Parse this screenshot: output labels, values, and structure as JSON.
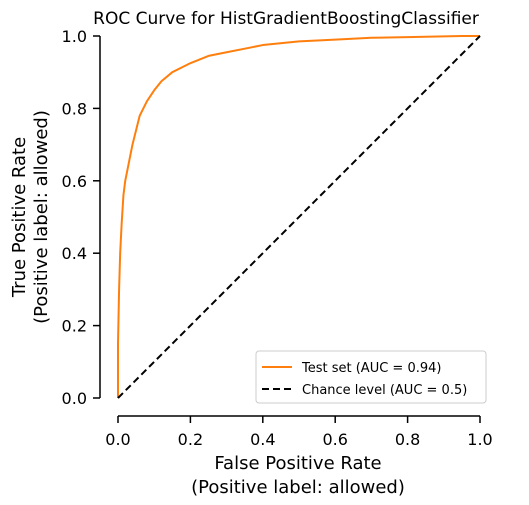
{
  "chart_data": {
    "type": "line",
    "title": "ROC Curve for HistGradientBoostingClassifier",
    "xlabel_line1": "False Positive Rate",
    "xlabel_line2": "(Positive label: allowed)",
    "ylabel_line1": "True Positive Rate",
    "ylabel_line2": "(Positive label: allowed)",
    "xlim": [
      0,
      1
    ],
    "ylim": [
      0,
      1
    ],
    "xticks": [
      0.0,
      0.2,
      0.4,
      0.6,
      0.8,
      1.0
    ],
    "xtick_labels": [
      "0.0",
      "0.2",
      "0.4",
      "0.6",
      "0.8",
      "1.0"
    ],
    "yticks": [
      0.0,
      0.2,
      0.4,
      0.6,
      0.8,
      1.0
    ],
    "ytick_labels": [
      "0.0",
      "0.2",
      "0.4",
      "0.6",
      "0.8",
      "1.0"
    ],
    "grid": false,
    "legend_position": "bottom-right",
    "series": [
      {
        "name": "Test set (AUC = 0.94)",
        "color": "#ff7f0e",
        "style": "solid",
        "x": [
          0.0,
          0.0,
          0.003,
          0.006,
          0.01,
          0.015,
          0.02,
          0.03,
          0.04,
          0.05,
          0.06,
          0.07,
          0.08,
          0.1,
          0.12,
          0.15,
          0.18,
          0.2,
          0.25,
          0.3,
          0.35,
          0.4,
          0.5,
          0.6,
          0.7,
          0.8,
          0.9,
          0.95,
          1.0
        ],
        "y": [
          0.0,
          0.15,
          0.3,
          0.4,
          0.48,
          0.56,
          0.6,
          0.65,
          0.7,
          0.74,
          0.78,
          0.8,
          0.82,
          0.85,
          0.875,
          0.9,
          0.915,
          0.925,
          0.945,
          0.955,
          0.965,
          0.975,
          0.985,
          0.99,
          0.995,
          0.997,
          0.999,
          1.0,
          1.0
        ]
      },
      {
        "name": "Chance level (AUC = 0.5)",
        "color": "#000000",
        "style": "dashed",
        "x": [
          0.0,
          1.0
        ],
        "y": [
          0.0,
          1.0
        ]
      }
    ]
  }
}
